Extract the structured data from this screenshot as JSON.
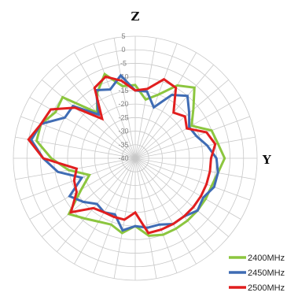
{
  "chart_data": {
    "type": "polar-line",
    "axis_top": "Z",
    "axis_right": "Y",
    "radial_ticks": [
      "5",
      "0",
      "-5",
      "-10",
      "-15",
      "-20",
      "-25",
      "-30",
      "-35",
      "-40"
    ],
    "rlim": [
      -40,
      5
    ],
    "angle_step_deg": 10,
    "grid": true,
    "legend_position": "bottom-right",
    "series": [
      {
        "name": "2400MHz",
        "color": "#8cc63f",
        "values": [
          -13,
          -18,
          -15,
          -9,
          -6,
          -12,
          -16,
          -10,
          -9,
          -7,
          -9,
          -10,
          -10,
          -10,
          -10,
          -10,
          -10,
          -11,
          -15,
          -12,
          -14,
          -13,
          -11,
          -8,
          -17,
          -22,
          -15,
          -9,
          -3,
          -3,
          -6,
          -5,
          -18,
          -12,
          -7,
          -13
        ]
      },
      {
        "name": "2450MHz",
        "color": "#3f6cb4",
        "values": [
          -15,
          -15,
          -20,
          -13,
          -10,
          -14,
          -17,
          -16,
          -13,
          -10,
          -9,
          -9,
          -11,
          -10,
          -12,
          -12,
          -14,
          -14,
          -15,
          -13,
          -18,
          -17,
          -18,
          -15,
          -12,
          -19,
          -11,
          -6,
          -1,
          -3,
          -10,
          -10,
          -19,
          -11,
          -13,
          -9
        ]
      },
      {
        "name": "2500MHz",
        "color": "#e11f1f",
        "values": [
          -15,
          -14,
          -9,
          -10,
          -18,
          -16,
          -18,
          -12,
          -10,
          -12,
          -12,
          -12,
          -12,
          -12,
          -12,
          -12,
          -12,
          -12,
          -20,
          -17,
          -17,
          -17,
          -16,
          -9,
          -15,
          -16,
          -18,
          -6,
          0,
          -3,
          -4,
          -11,
          -21,
          -10,
          -8,
          -11
        ]
      }
    ]
  }
}
